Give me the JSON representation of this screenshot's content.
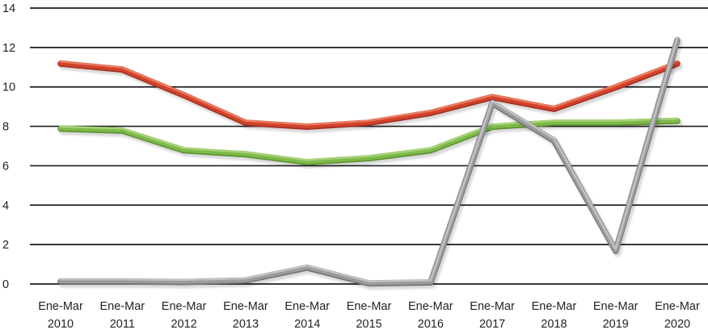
{
  "colors": {
    "background": "#ffffff",
    "grid": "#1c1c1c",
    "text": "#262223"
  },
  "chart_data": {
    "type": "line",
    "title": "",
    "xlabel": "",
    "ylabel": "",
    "legend": "none",
    "grid": "horizontal",
    "ylim": [
      0,
      14
    ],
    "yticks": [
      "0",
      "2",
      "4",
      "6",
      "8",
      "10",
      "12",
      "14"
    ],
    "category_top_label": "Ene-Mar",
    "category_years": [
      "2010",
      "2011",
      "2012",
      "2013",
      "2014",
      "2015",
      "2016",
      "2017",
      "2018",
      "2019",
      "2020"
    ],
    "categories": [
      "Ene-Mar 2010",
      "Ene-Mar 2011",
      "Ene-Mar 2012",
      "Ene-Mar 2013",
      "Ene-Mar 2014",
      "Ene-Mar 2015",
      "Ene-Mar 2016",
      "Ene-Mar 2017",
      "Ene-Mar 2018",
      "Ene-Mar 2019",
      "Ene-Mar 2020"
    ],
    "series": [
      {
        "name": "red-series",
        "color": "#d2432c",
        "color_dark": "#a33120",
        "color_light": "#ec8265",
        "values": [
          11.2,
          10.9,
          9.6,
          8.2,
          8.0,
          8.2,
          8.7,
          9.5,
          8.9,
          10.0,
          11.2
        ]
      },
      {
        "name": "green-series",
        "color": "#7dba49",
        "color_dark": "#5e9231",
        "color_light": "#aed580",
        "values": [
          7.9,
          7.8,
          6.8,
          6.6,
          6.2,
          6.4,
          6.8,
          8.0,
          8.2,
          8.2,
          8.3
        ]
      },
      {
        "name": "gray-series",
        "color": "#9c9c9f",
        "color_dark": "#757578",
        "color_light": "#c8c8cb",
        "values": [
          0.15,
          0.15,
          0.12,
          0.2,
          0.85,
          0.05,
          0.1,
          9.2,
          7.3,
          1.7,
          12.4
        ]
      }
    ]
  }
}
